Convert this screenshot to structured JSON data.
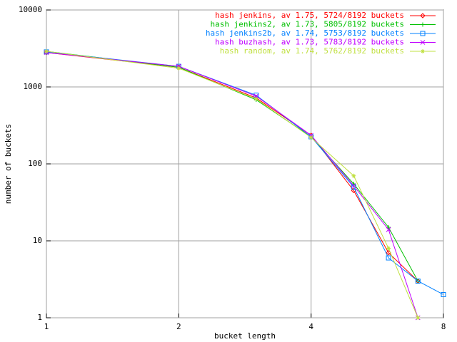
{
  "chart_data": {
    "type": "line",
    "xlabel": "bucket length",
    "ylabel": "number of buckets",
    "xlog": true,
    "ylog": true,
    "grid": true,
    "legend": "upper right",
    "xlim": [
      1,
      8
    ],
    "ylim": [
      1,
      10000
    ],
    "xticks": [
      1,
      2,
      4,
      8
    ],
    "yticks": [
      1,
      10,
      100,
      1000,
      10000
    ],
    "x": [
      1,
      2,
      3,
      4,
      5,
      6,
      7,
      8
    ],
    "series": [
      {
        "name": "hash jenkins, av 1.75, 5724/8192 buckets",
        "color": "#ff0000",
        "values": [
          2800,
          1800,
          720,
          235,
          45,
          7,
          3,
          null
        ]
      },
      {
        "name": "hash jenkins2, av 1.73, 5805/8192 buckets",
        "color": "#00c000",
        "values": [
          2900,
          1800,
          680,
          225,
          55,
          15,
          3,
          null
        ]
      },
      {
        "name": "hash jenkins2b, av 1.74, 5753/8192 buckets",
        "color": "#0080ff",
        "values": [
          2850,
          1850,
          780,
          225,
          50,
          6,
          3,
          2
        ]
      },
      {
        "name": "hash buzhash, av 1.73, 5783/8192 buckets",
        "color": "#c000ff",
        "values": [
          2800,
          1850,
          760,
          235,
          52,
          14,
          1,
          null
        ]
      },
      {
        "name": "hash random, av 1.74, 5762/8192 buckets",
        "color": "#c0e040",
        "values": [
          2900,
          1750,
          700,
          220,
          70,
          8,
          1,
          null
        ]
      }
    ]
  }
}
